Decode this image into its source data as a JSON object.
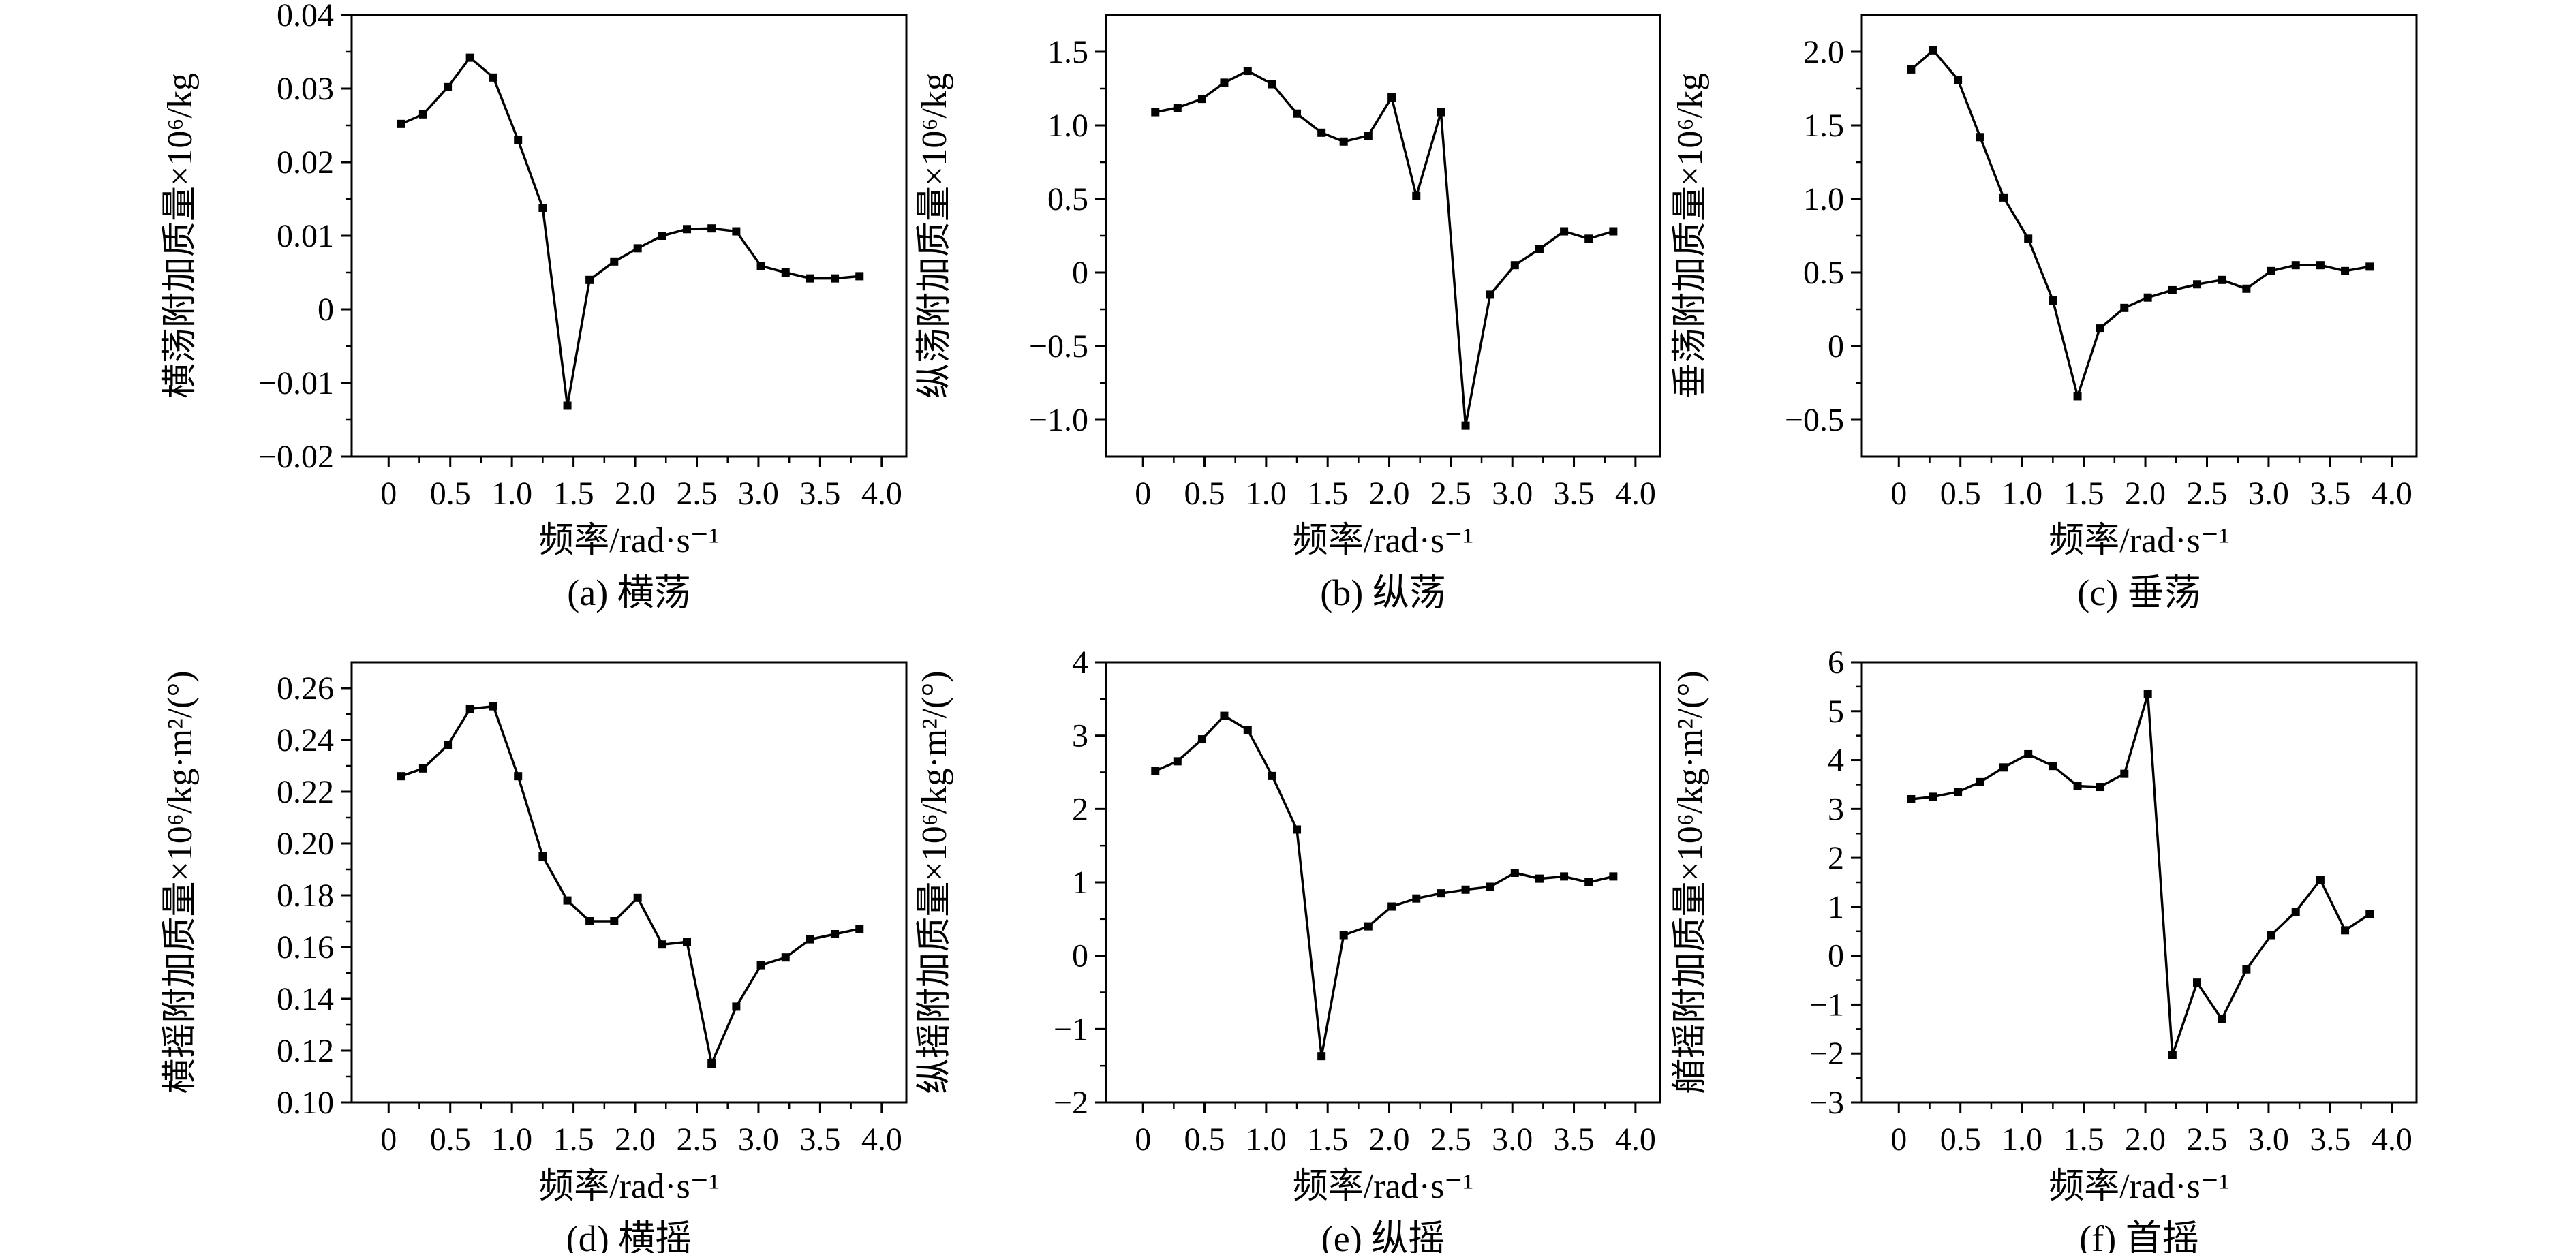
{
  "chart_data": [
    {
      "type": "line",
      "caption": "(a) 横荡",
      "xlabel": "频率/rad·s⁻¹",
      "ylabel": "横荡附加质量×10⁶/kg",
      "xlim": [
        -0.3,
        4.2
      ],
      "ylim": [
        -0.02,
        0.04
      ],
      "xticks": [
        "0",
        "0.5",
        "1.0",
        "1.5",
        "2.0",
        "2.5",
        "3.0",
        "3.5",
        "4.0"
      ],
      "yticks": [
        "0.04",
        "0.03",
        "0.02",
        "0.01",
        "0",
        "−0.01",
        "−0.02"
      ],
      "x": [
        0.1,
        0.28,
        0.48,
        0.66,
        0.85,
        1.05,
        1.25,
        1.45,
        1.63,
        1.83,
        2.02,
        2.22,
        2.42,
        2.62,
        2.82,
        3.02,
        3.22,
        3.42,
        3.62,
        3.82
      ],
      "values": [
        0.0252,
        0.0265,
        0.0302,
        0.0342,
        0.0315,
        0.023,
        0.0138,
        -0.0131,
        0.004,
        0.0065,
        0.0083,
        0.01,
        0.0109,
        0.011,
        0.0106,
        0.0059,
        0.005,
        0.0042,
        0.0042,
        0.0045
      ]
    },
    {
      "type": "line",
      "caption": "(b) 纵荡",
      "xlabel": "频率/rad·s⁻¹",
      "ylabel": "纵荡附加质量×10⁶/kg",
      "xlim": [
        -0.3,
        4.2
      ],
      "ylim": [
        -1.25,
        1.75
      ],
      "xticks": [
        "0",
        "0.5",
        "1.0",
        "1.5",
        "2.0",
        "2.5",
        "3.0",
        "3.5",
        "4.0"
      ],
      "yticks": [
        "1.5",
        "1.0",
        "0.5",
        "0",
        "−0.5",
        "−1.0"
      ],
      "x": [
        0.1,
        0.28,
        0.48,
        0.66,
        0.85,
        1.05,
        1.25,
        1.45,
        1.63,
        1.83,
        2.02,
        2.22,
        2.42,
        2.62,
        2.82,
        3.02,
        3.22,
        3.42,
        3.62,
        3.82
      ],
      "values": [
        1.09,
        1.12,
        1.18,
        1.29,
        1.37,
        1.28,
        1.08,
        0.95,
        0.89,
        0.93,
        1.19,
        0.52,
        1.09,
        -1.04,
        -0.15,
        0.05,
        0.16,
        0.28,
        0.23,
        0.28
      ]
    },
    {
      "type": "line",
      "caption": "(c) 垂荡",
      "xlabel": "频率/rad·s⁻¹",
      "ylabel": "垂荡附加质量×10⁶/kg",
      "xlim": [
        -0.3,
        4.2
      ],
      "ylim": [
        -0.75,
        2.25
      ],
      "xticks": [
        "0",
        "0.5",
        "1.0",
        "1.5",
        "2.0",
        "2.5",
        "3.0",
        "3.5",
        "4.0"
      ],
      "yticks": [
        "2.0",
        "1.5",
        "1.0",
        "0.5",
        "0",
        "−0.5"
      ],
      "x": [
        0.1,
        0.28,
        0.48,
        0.66,
        0.85,
        1.05,
        1.25,
        1.45,
        1.63,
        1.83,
        2.02,
        2.22,
        2.42,
        2.62,
        2.82,
        3.02,
        3.22,
        3.42,
        3.62,
        3.82
      ],
      "values": [
        1.88,
        2.01,
        1.81,
        1.42,
        1.01,
        0.73,
        0.31,
        -0.34,
        0.12,
        0.26,
        0.33,
        0.38,
        0.42,
        0.45,
        0.39,
        0.51,
        0.55,
        0.55,
        0.51,
        0.54
      ]
    },
    {
      "type": "line",
      "caption": "(d) 横摇",
      "xlabel": "频率/rad·s⁻¹",
      "ylabel": "横摇附加质量×10⁶/kg·m²/(°)",
      "xlim": [
        -0.3,
        4.2
      ],
      "ylim": [
        0.1,
        0.27
      ],
      "xticks": [
        "0",
        "0.5",
        "1.0",
        "1.5",
        "2.0",
        "2.5",
        "3.0",
        "3.5",
        "4.0"
      ],
      "yticks": [
        "0.26",
        "0.24",
        "0.22",
        "0.20",
        "0.18",
        "0.16",
        "0.14",
        "0.12",
        "0.10"
      ],
      "x": [
        0.1,
        0.28,
        0.48,
        0.66,
        0.85,
        1.05,
        1.25,
        1.45,
        1.63,
        1.83,
        2.02,
        2.22,
        2.42,
        2.62,
        2.82,
        3.02,
        3.22,
        3.42,
        3.62,
        3.82
      ],
      "values": [
        0.226,
        0.229,
        0.238,
        0.252,
        0.253,
        0.226,
        0.195,
        0.178,
        0.17,
        0.17,
        0.179,
        0.161,
        0.162,
        0.115,
        0.137,
        0.153,
        0.156,
        0.163,
        0.165,
        0.167
      ]
    },
    {
      "type": "line",
      "caption": "(e) 纵摇",
      "xlabel": "频率/rad·s⁻¹",
      "ylabel": "纵摇附加质量×10⁶/kg·m²/(°)",
      "xlim": [
        -0.3,
        4.2
      ],
      "ylim": [
        -2,
        4
      ],
      "xticks": [
        "0",
        "0.5",
        "1.0",
        "1.5",
        "2.0",
        "2.5",
        "3.0",
        "3.5",
        "4.0"
      ],
      "yticks": [
        "4",
        "3",
        "2",
        "1",
        "0",
        "−1",
        "−2"
      ],
      "x": [
        0.1,
        0.28,
        0.48,
        0.66,
        0.85,
        1.05,
        1.25,
        1.45,
        1.63,
        1.83,
        2.02,
        2.22,
        2.42,
        2.62,
        2.82,
        3.02,
        3.22,
        3.42,
        3.62,
        3.82
      ],
      "values": [
        2.52,
        2.65,
        2.95,
        3.27,
        3.08,
        2.45,
        1.72,
        -1.37,
        0.28,
        0.4,
        0.67,
        0.78,
        0.85,
        0.9,
        0.94,
        1.13,
        1.05,
        1.08,
        1.0,
        1.08
      ]
    },
    {
      "type": "line",
      "caption": "(f) 首摇",
      "xlabel": "频率/rad·s⁻¹",
      "ylabel": "艏摇附加质量×10⁶/kg·m²/(°)",
      "xlim": [
        -0.3,
        4.2
      ],
      "ylim": [
        -3,
        6
      ],
      "xticks": [
        "0",
        "0.5",
        "1.0",
        "1.5",
        "2.0",
        "2.5",
        "3.0",
        "3.5",
        "4.0"
      ],
      "yticks": [
        "6",
        "5",
        "4",
        "3",
        "2",
        "1",
        "0",
        "−1",
        "−2",
        "−3"
      ],
      "x": [
        0.1,
        0.28,
        0.48,
        0.66,
        0.85,
        1.05,
        1.25,
        1.45,
        1.63,
        1.83,
        2.02,
        2.22,
        2.42,
        2.62,
        2.82,
        3.02,
        3.22,
        3.42,
        3.62,
        3.82
      ],
      "values": [
        3.2,
        3.25,
        3.35,
        3.55,
        3.85,
        4.12,
        3.88,
        3.47,
        3.45,
        3.72,
        5.35,
        -2.03,
        -0.55,
        -1.3,
        -0.28,
        0.42,
        0.9,
        1.55,
        0.52,
        0.85
      ]
    }
  ]
}
